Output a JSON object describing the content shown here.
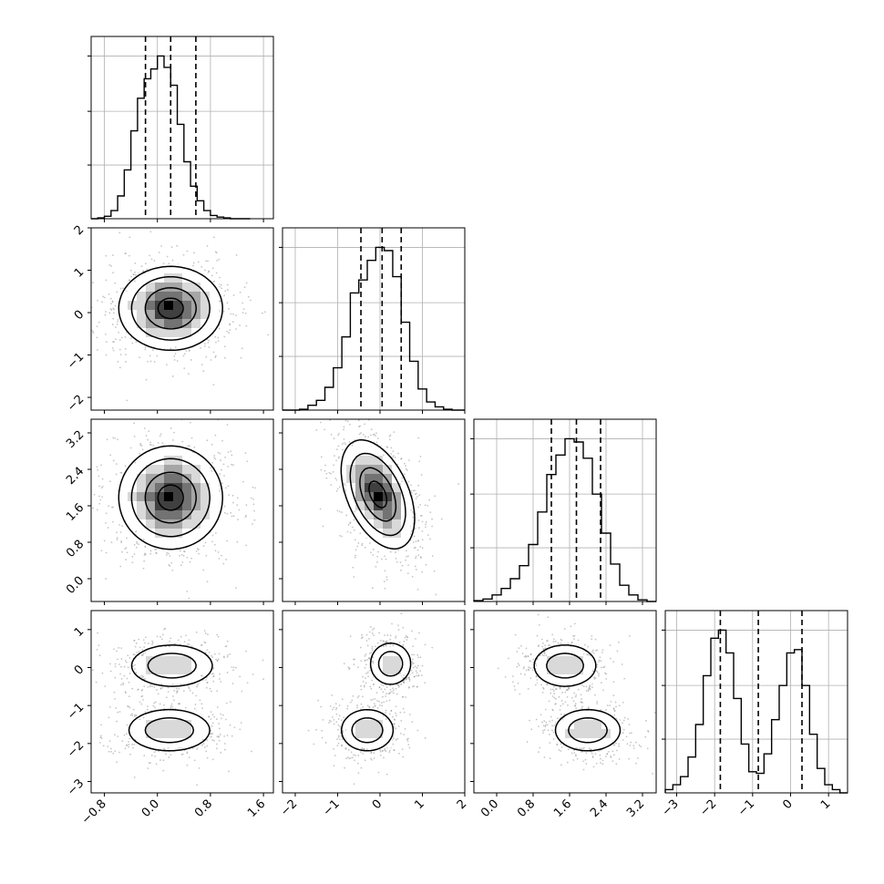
{
  "chart_data": {
    "type": "corner",
    "style": {
      "hist_color": "#000000",
      "quantile_line_color": "#000000",
      "grid_color": "#b0b0b0",
      "density_colors": [
        "#ffffff",
        "#d9d9d9",
        "#a6a6a6",
        "#737373",
        "#404040",
        "#000000"
      ],
      "scatter_color": "#808080"
    },
    "variables": [
      {
        "range": [
          -1.0,
          1.75
        ],
        "ticks": [
          -0.8,
          0.0,
          0.8,
          1.6
        ],
        "tick_labels": [
          "−0.8",
          "0.0",
          "0.8",
          "1.6"
        ],
        "quantiles": [
          -0.18,
          0.2,
          0.58
        ]
      },
      {
        "range": [
          -2.3,
          2.0
        ],
        "ticks": [
          -2,
          -1,
          0,
          1,
          2
        ],
        "tick_labels": [
          "−2",
          "−1",
          "0",
          "1",
          "2"
        ],
        "quantiles": [
          -0.45,
          0.05,
          0.5
        ]
      },
      {
        "range": [
          -0.5,
          3.5
        ],
        "ticks": [
          0.0,
          0.8,
          1.6,
          2.4,
          3.2
        ],
        "tick_labels": [
          "0.0",
          "0.8",
          "1.6",
          "2.4",
          "3.2"
        ],
        "quantiles": [
          1.2,
          1.75,
          2.28
        ]
      },
      {
        "range": [
          -3.3,
          1.5
        ],
        "ticks": [
          -3,
          -2,
          -1,
          0,
          1
        ],
        "tick_labels": [
          "−3",
          "−2",
          "−1",
          "0",
          "1"
        ],
        "quantiles": [
          -1.85,
          -0.85,
          0.3
        ]
      }
    ],
    "histograms": [
      {
        "bins": [
          -1.0,
          -0.9,
          -0.8,
          -0.7,
          -0.6,
          -0.5,
          -0.4,
          -0.3,
          -0.2,
          -0.1,
          0.0,
          0.1,
          0.2,
          0.3,
          0.4,
          0.5,
          0.6,
          0.7,
          0.8,
          0.9,
          1.0,
          1.1,
          1.2,
          1.3,
          1.4
        ],
        "counts": [
          0.0,
          0.005,
          0.015,
          0.05,
          0.14,
          0.3,
          0.54,
          0.74,
          0.86,
          0.92,
          1.0,
          0.93,
          0.82,
          0.58,
          0.35,
          0.2,
          0.11,
          0.05,
          0.02,
          0.01,
          0.005,
          0.0,
          0.0,
          0.0
        ]
      },
      {
        "bins": [
          -2.3,
          -2.1,
          -1.9,
          -1.7,
          -1.5,
          -1.3,
          -1.1,
          -0.9,
          -0.7,
          -0.5,
          -0.3,
          -0.1,
          0.1,
          0.3,
          0.5,
          0.7,
          0.9,
          1.1,
          1.3,
          1.5,
          1.7,
          1.9,
          2.0
        ],
        "counts": [
          0.0,
          0.0,
          0.005,
          0.03,
          0.06,
          0.14,
          0.26,
          0.45,
          0.72,
          0.8,
          0.92,
          1.0,
          0.98,
          0.82,
          0.54,
          0.3,
          0.13,
          0.05,
          0.02,
          0.005,
          0.0,
          0.0
        ]
      },
      {
        "bins": [
          -0.5,
          -0.3,
          -0.1,
          0.1,
          0.3,
          0.5,
          0.7,
          0.9,
          1.1,
          1.3,
          1.5,
          1.7,
          1.9,
          2.1,
          2.3,
          2.5,
          2.7,
          2.9,
          3.1,
          3.3,
          3.5
        ],
        "counts": [
          0.005,
          0.015,
          0.04,
          0.08,
          0.14,
          0.22,
          0.35,
          0.55,
          0.78,
          0.9,
          1.0,
          0.98,
          0.88,
          0.66,
          0.42,
          0.23,
          0.1,
          0.04,
          0.01,
          0.0
        ]
      },
      {
        "bins": [
          -3.3,
          -3.1,
          -2.9,
          -2.7,
          -2.5,
          -2.3,
          -2.1,
          -1.9,
          -1.7,
          -1.5,
          -1.3,
          -1.1,
          -0.9,
          -0.7,
          -0.5,
          -0.3,
          -0.1,
          0.1,
          0.3,
          0.5,
          0.7,
          0.9,
          1.1,
          1.3,
          1.5
        ],
        "counts": [
          0.02,
          0.05,
          0.1,
          0.22,
          0.42,
          0.72,
          0.95,
          1.0,
          0.86,
          0.58,
          0.3,
          0.13,
          0.12,
          0.24,
          0.45,
          0.66,
          0.86,
          0.88,
          0.66,
          0.36,
          0.15,
          0.05,
          0.02,
          0.0
        ]
      }
    ],
    "pairs": [
      {
        "x_var": 0,
        "y_var": 1,
        "clusters": [
          {
            "mx": 0.2,
            "my": 0.1,
            "sx": 0.38,
            "sy": 0.48,
            "w": 1.0
          }
        ]
      },
      {
        "x_var": 0,
        "y_var": 2,
        "clusters": [
          {
            "mx": 0.2,
            "my": 1.78,
            "sx": 0.38,
            "sy": 0.55,
            "w": 1.0
          }
        ]
      },
      {
        "x_var": 1,
        "y_var": 2,
        "clusters": [
          {
            "mx": -0.05,
            "my": 1.85,
            "sx": 0.42,
            "sy": 0.58,
            "w": 1.0,
            "rho": -0.45
          }
        ]
      },
      {
        "x_var": 0,
        "y_var": 3,
        "clusters": [
          {
            "mx": 0.22,
            "my": 0.05,
            "sx": 0.36,
            "sy": 0.32,
            "w": 0.5
          },
          {
            "mx": 0.18,
            "my": -1.65,
            "sx": 0.36,
            "sy": 0.32,
            "w": 0.5
          }
        ]
      },
      {
        "x_var": 1,
        "y_var": 3,
        "clusters": [
          {
            "mx": 0.25,
            "my": 0.1,
            "sx": 0.28,
            "sy": 0.32,
            "w": 0.5
          },
          {
            "mx": -0.3,
            "my": -1.65,
            "sx": 0.36,
            "sy": 0.32,
            "w": 0.5
          }
        ]
      },
      {
        "x_var": 2,
        "y_var": 3,
        "clusters": [
          {
            "mx": 1.5,
            "my": 0.05,
            "sx": 0.4,
            "sy": 0.32,
            "w": 0.5
          },
          {
            "mx": 2.0,
            "my": -1.65,
            "sx": 0.42,
            "sy": 0.32,
            "w": 0.5
          }
        ]
      }
    ]
  }
}
